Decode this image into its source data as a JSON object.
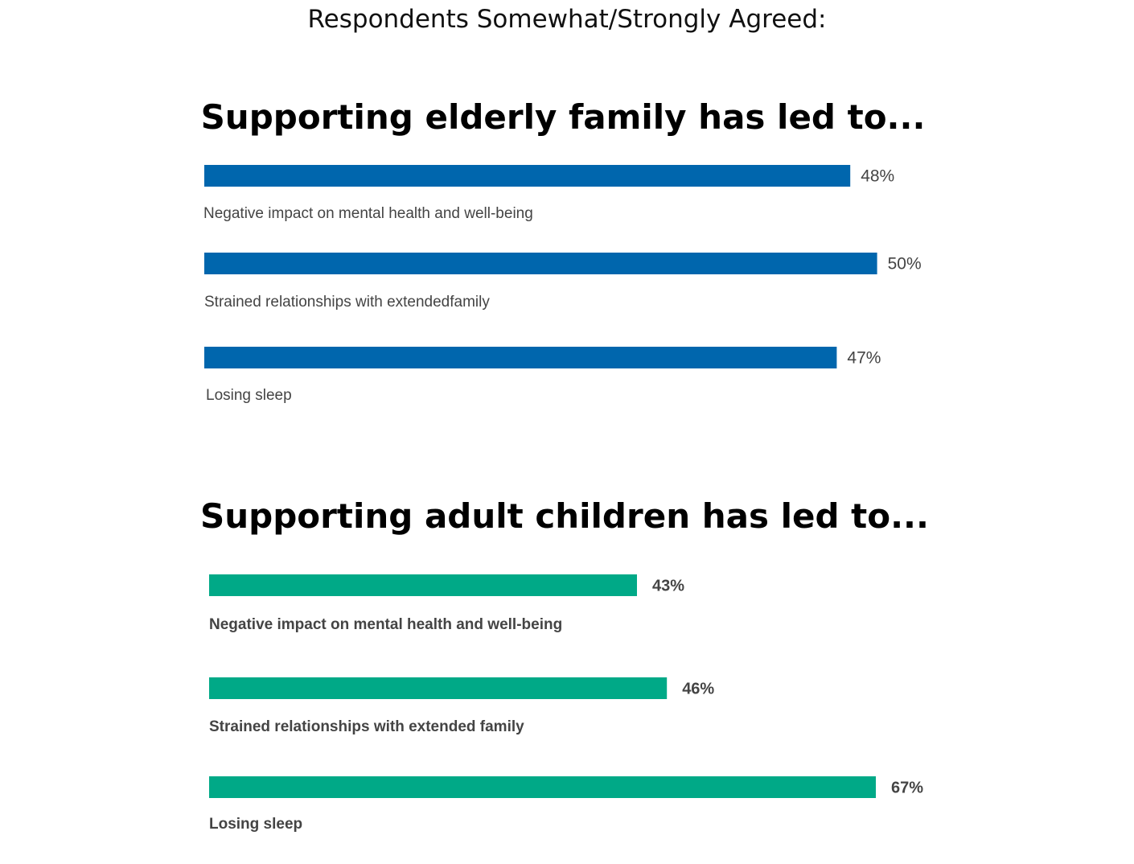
{
  "header": {
    "supertitle": "Respondents Somewhat/Strongly Agreed:"
  },
  "chart_data": [
    {
      "type": "bar",
      "orientation": "horizontal",
      "title": "Supporting elderly family has led to...",
      "categories": [
        "Negative impact on mental health and well-being",
        "Strained relationships with extendedfamily",
        "Losing sleep"
      ],
      "values": [
        48,
        50,
        47
      ],
      "value_labels": [
        "48%",
        "50%",
        "47%"
      ],
      "unit": "%",
      "bar_color": "#0066AD",
      "xlim": [
        0,
        50.5
      ],
      "grid": false
    },
    {
      "type": "bar",
      "orientation": "horizontal",
      "title": "Supporting adult children has led to...",
      "categories": [
        "Negative impact on mental health and well-being",
        "Strained relationships with extended family",
        "Losing sleep"
      ],
      "values": [
        43,
        46,
        67
      ],
      "value_labels": [
        "43%",
        "46%",
        "67%"
      ],
      "unit": "%",
      "bar_color": "#00A987",
      "xlim": [
        0,
        67
      ],
      "grid": false
    }
  ]
}
